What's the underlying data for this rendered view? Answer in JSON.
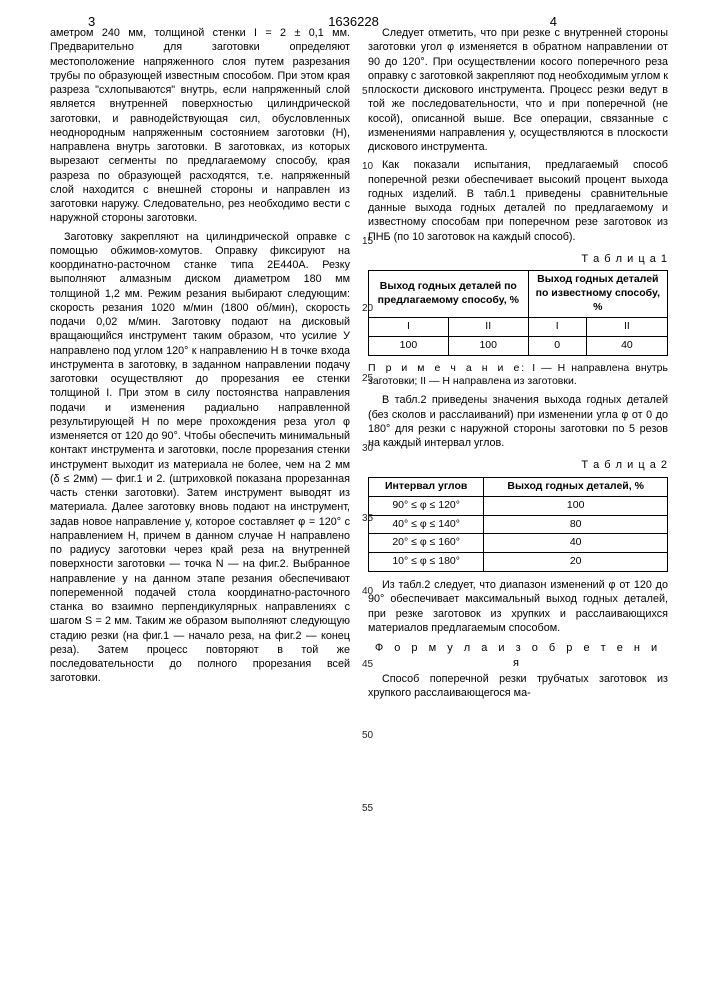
{
  "header": {
    "left_num": "3",
    "center_num": "1636228",
    "right_num": "4"
  },
  "line_markers": [
    "5",
    "10",
    "15",
    "20",
    "25",
    "30",
    "35",
    "40",
    "45",
    "50",
    "55"
  ],
  "left_col": {
    "p1": "аметром 240 мм, толщиной стенки I = 2 ± 0,1 мм. Предварительно для заготовки определяют местоположение напряженного слоя путем разрезания трубы по образующей известным способом. При этом края разреза \"схлопываются\" внутрь, если напряженный слой является внутренней поверхностью цилиндрической заготовки, и равнодействующая сил, обусловленных неоднородным напряженным состоянием заготовки (H), направлена внутрь заготовки. В заготовках, из которых вырезают сегменты по предлагаемому способу, края разреза по образующей расходятся, т.е. напряженный слой находится с внешней стороны и направлен из заготовки наружу. Следовательно, рез необходимо вести с наружной стороны заготовки.",
    "p2": "Заготовку закрепляют на цилиндрической оправке с помощью обжимов-хомутов. Оправку фиксируют на координатно-расточном станке типа 2Е440А. Резку выполняют алмазным диском диаметром 180 мм толщиной 1,2 мм. Режим резания выбирают следующим: скорость резания 1020 м/мин (1800 об/мин), скорость подачи 0,02 м/мин. Заготовку подают на дисковый вращающийся инструмент таким образом, что усилие У направлено под углом 120° к направлению H в точке входа инструмента в заготовку, в заданном направлении подачу заготовки осуществляют до прорезания ее стенки толщиной I. При этом в силу постоянства направления подачи и изменения радиально направленной результирующей H по мере прохождения реза угол φ изменяется от 120 до 90°. Чтобы обеспечить минимальный контакт инструмента и заготовки, после прорезания стенки инструмент выходит из материала не более, чем на 2 мм (δ ≤ 2мм) — фиг.1 и 2. (штриховкой показана прорезанная часть стенки заготовки). Затем инструмент выводят из материала. Далее заготовку вновь подают на инструмент, задав новое направление у, которое составляет φ = 120° с направлением H, причем в данном случае H направлено по радиусу заготовки через край реза на внутренней поверхности заготовки — точка N — на фиг.2. Выбранное направление у на данном этапе резания обеспечивают попеременной подачей стола координатно-расточного станка во взаимно перпендикулярных направлениях с шагом S = 2 мм. Таким же образом выполняют следующую стадию резки (на фиг.1 — начало реза, на фиг.2 — конец реза). Затем процесс повторяют в той же последовательности до полного прорезания всей заготовки."
  },
  "right_col": {
    "p1": "Следует отметить, что при резке с внутренней стороны заготовки угол φ изменяется в обратном направлении от 90 до 120°. При осуществлении косого поперечного реза оправку с заготовкой закрепляют под необходимым углом к плоскости дискового инструмента. Процесс резки ведут в той же последовательности, что и при поперечной (не косой), описанной выше. Все операции, связанные с изменениями направления у, осуществляются в плоскости дискового инструмента.",
    "p2": "Как показали испытания, предлагаемый способ поперечной резки обеспечивает высокий процент выхода годных изделий. В табл.1 приведены сравнительные данные выхода годных деталей по предлагаемому и известному способам при поперечном резе заготовок из ПНБ (по 10 заготовок на каждый способ).",
    "table1_label": "Т а б л и ц а  1",
    "table1": {
      "head_a": "Выход годных деталей по предлагаемому способу, %",
      "head_b": "Выход годных деталей по известному способу, %",
      "sub": [
        "I",
        "II",
        "I",
        "II"
      ],
      "row": [
        "100",
        "100",
        "0",
        "40"
      ]
    },
    "note1_label": "П р и м е ч а н и е:",
    "note1_text": "I — H направлена внутрь заготовки; II — H направлена из заготовки.",
    "p3": "В табл.2 приведены значения выхода годных деталей (без сколов и расслаиваний) при изменении угла φ от 0 до 180° для резки с наружной стороны заготовки по 5 резов на каждый интервал углов.",
    "table2_label": "Т а б л и ц а  2",
    "table2": {
      "head_a": "Интервал углов",
      "head_b": "Выход годных деталей, %",
      "rows": [
        [
          "90° ≤ φ ≤ 120°",
          "100"
        ],
        [
          "40° ≤ φ ≤ 140°",
          "80"
        ],
        [
          "20° ≤ φ ≤ 160°",
          "40"
        ],
        [
          "10° ≤ φ ≤ 180°",
          "20"
        ]
      ]
    },
    "p4": "Из табл.2 следует, что диапазон изменений φ от 120 до 90° обеспечивает максимальный выход годных деталей, при резке заготовок из хрупких и расслаивающихся материалов предлагаемым способом.",
    "formula_label": "Ф о р м у л а  и з о б р е т е н и я",
    "p5": "Способ поперечной резки трубчатых заготовок из хрупкого расслаивающегося ма-"
  }
}
